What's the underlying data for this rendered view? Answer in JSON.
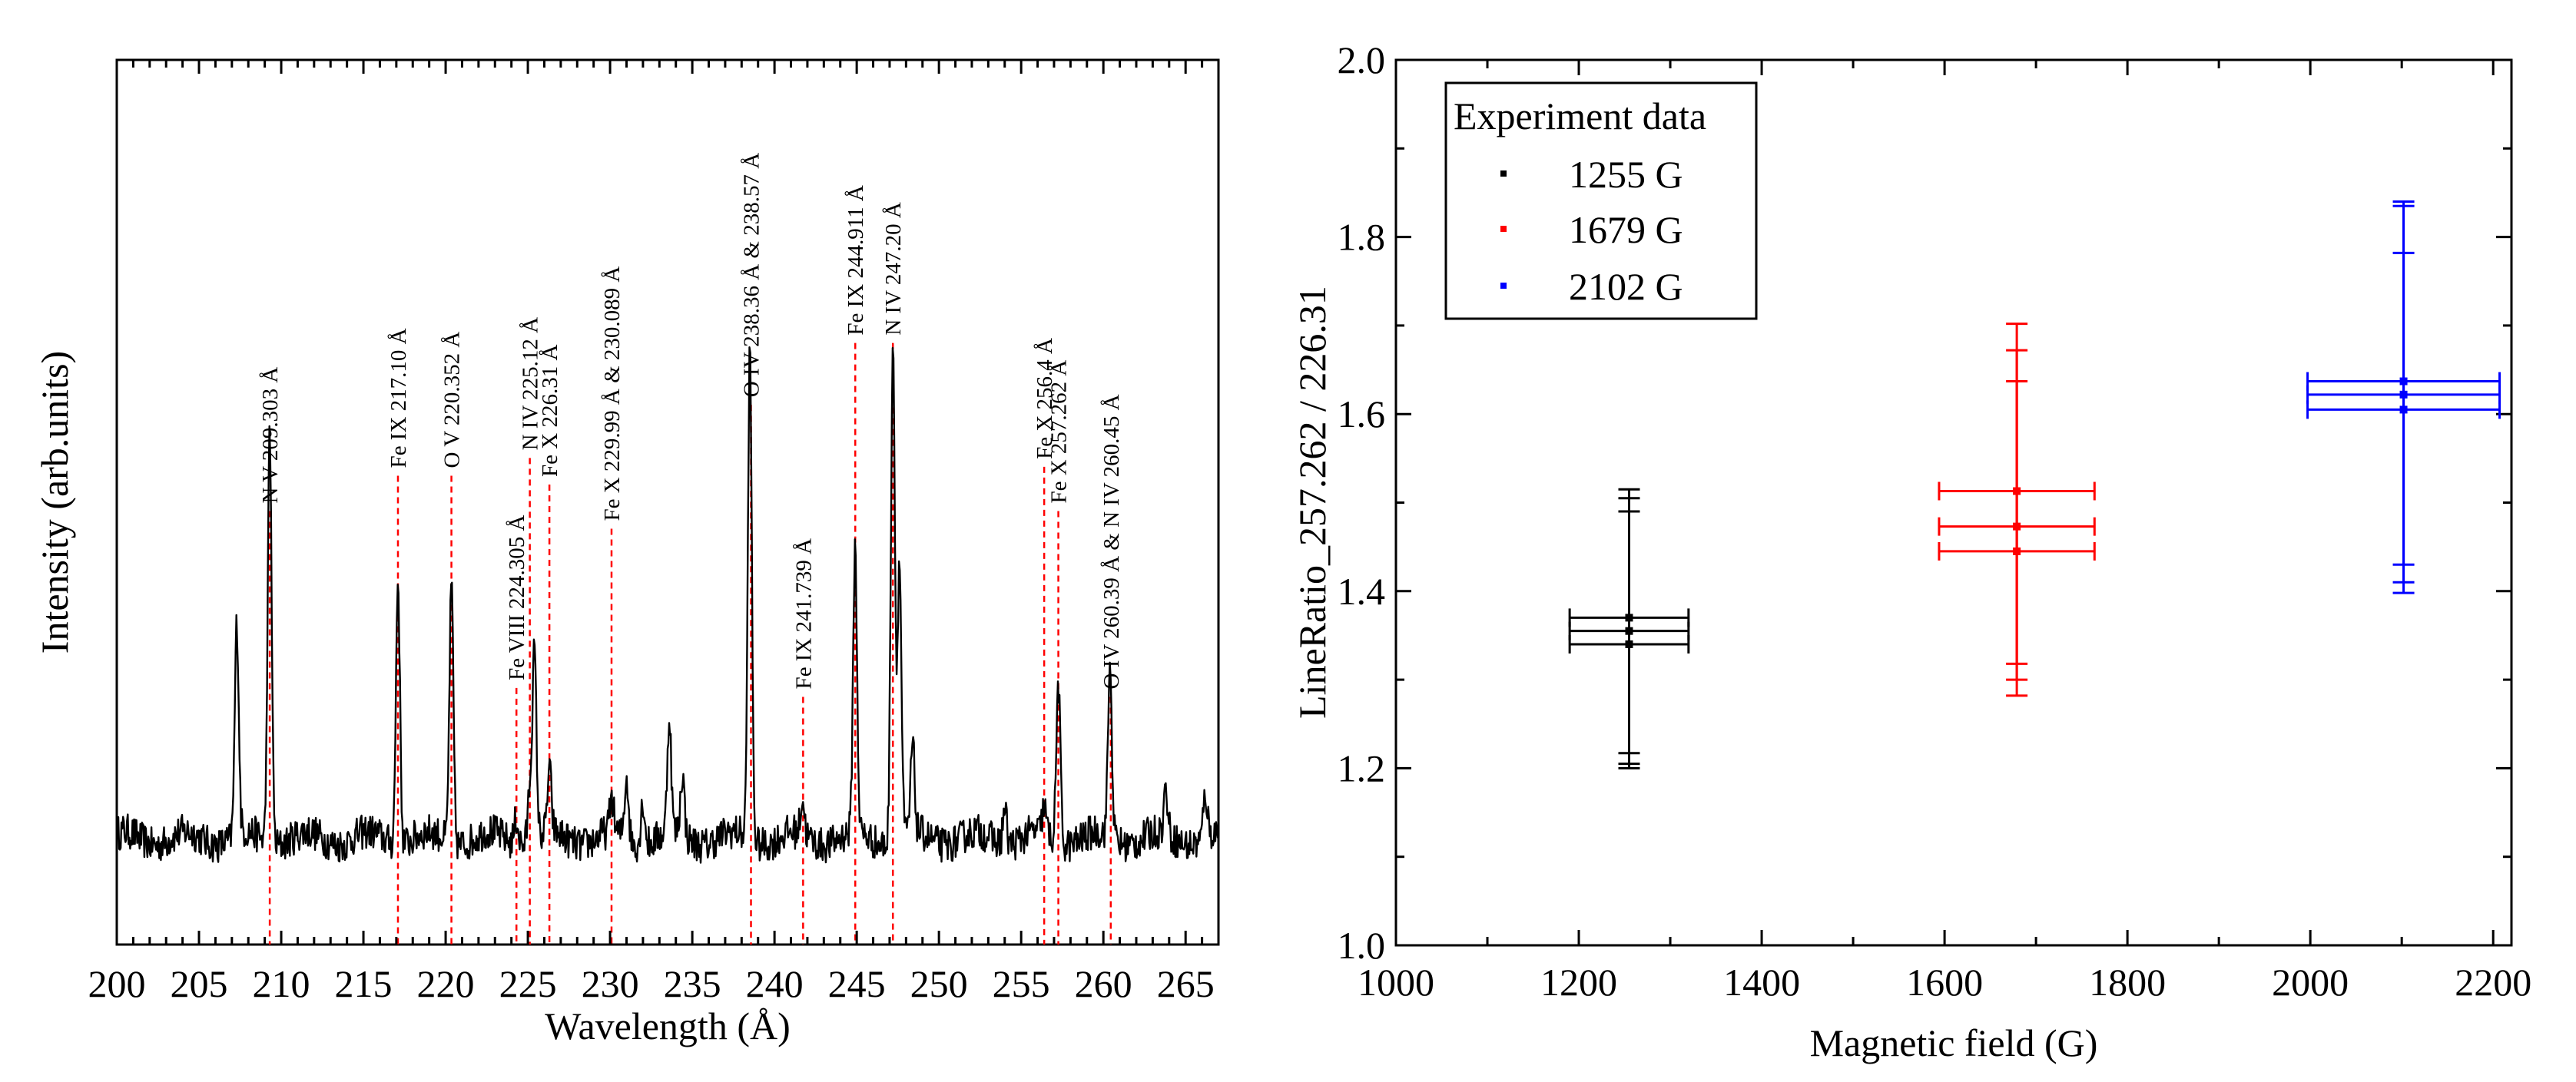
{
  "chart_data": [
    {
      "type": "line",
      "title": "",
      "xlabel": "Wavelength (Å)",
      "ylabel": "Intensity (arb.units)",
      "xlim": [
        200,
        267
      ],
      "ylim": [
        0,
        1
      ],
      "xticks": [
        200,
        205,
        210,
        215,
        220,
        225,
        230,
        235,
        240,
        245,
        250,
        255,
        260,
        265
      ],
      "line_color": "#000000",
      "marker_color": "#ff0000",
      "baseline": 0.12,
      "noise_amplitude": 0.02,
      "peaks": [
        {
          "x": 207.3,
          "h": 0.24
        },
        {
          "x": 209.3,
          "h": 0.46
        },
        {
          "x": 217.1,
          "h": 0.3
        },
        {
          "x": 220.35,
          "h": 0.29
        },
        {
          "x": 224.3,
          "h": 0.03
        },
        {
          "x": 225.12,
          "h": 0.06
        },
        {
          "x": 225.4,
          "h": 0.21
        },
        {
          "x": 226.31,
          "h": 0.07
        },
        {
          "x": 230.1,
          "h": 0.04
        },
        {
          "x": 231.0,
          "h": 0.07
        },
        {
          "x": 232.0,
          "h": 0.05
        },
        {
          "x": 233.6,
          "h": 0.13
        },
        {
          "x": 234.4,
          "h": 0.07
        },
        {
          "x": 238.5,
          "h": 0.55
        },
        {
          "x": 241.7,
          "h": 0.04
        },
        {
          "x": 244.9,
          "h": 0.32
        },
        {
          "x": 247.2,
          "h": 0.57
        },
        {
          "x": 247.6,
          "h": 0.31
        },
        {
          "x": 248.4,
          "h": 0.1
        },
        {
          "x": 254.0,
          "h": 0.04
        },
        {
          "x": 256.4,
          "h": 0.03
        },
        {
          "x": 257.26,
          "h": 0.18
        },
        {
          "x": 260.4,
          "h": 0.19
        },
        {
          "x": 263.8,
          "h": 0.05
        },
        {
          "x": 266.2,
          "h": 0.05
        }
      ],
      "line_markers": [
        {
          "x": 209.303,
          "label": "N V 209.303 Å",
          "y_top": 0.49
        },
        {
          "x": 217.1,
          "label": "Fe IX 217.10 Å",
          "y_top": 0.53
        },
        {
          "x": 220.352,
          "label": "O V 220.352 Å",
          "y_top": 0.53
        },
        {
          "x": 224.305,
          "label": "Fe VIII 224.305 Å",
          "y_top": 0.29
        },
        {
          "x": 225.12,
          "label": "N IV 225.12 Å",
          "y_top": 0.55
        },
        {
          "x": 226.31,
          "label": "Fe X 226.31 Å",
          "y_top": 0.52
        },
        {
          "x": 230.089,
          "label": "Fe X 229.99 Å & 230.089 Å",
          "y_top": 0.47
        },
        {
          "x": 238.57,
          "label": "O IV 238.36 Å & 238.57 Å",
          "y_top": 0.61
        },
        {
          "x": 241.739,
          "label": "Fe IX 241.739 Å",
          "y_top": 0.28
        },
        {
          "x": 244.911,
          "label": "Fe IX 244.911 Å",
          "y_top": 0.68
        },
        {
          "x": 247.2,
          "label": "N IV 247.20 Å",
          "y_top": 0.68
        },
        {
          "x": 256.4,
          "label": "Fe X 256.4 Å",
          "y_top": 0.54
        },
        {
          "x": 257.262,
          "label": "Fe X 257.262 Å",
          "y_top": 0.49
        },
        {
          "x": 260.45,
          "label": "O IV 260.39 Å & N IV 260.45 Å",
          "y_top": 0.28
        }
      ]
    },
    {
      "type": "scatter",
      "title": "",
      "xlabel": "Magnetic field (G)",
      "ylabel": "LineRatio_257.262 / 226.31",
      "xlim": [
        1000,
        2220
      ],
      "ylim": [
        1.0,
        2.0
      ],
      "xticks": [
        1000,
        1200,
        1400,
        1600,
        1800,
        2000,
        2200
      ],
      "yticks": [
        1.0,
        1.2,
        1.4,
        1.6,
        1.8,
        2.0
      ],
      "legend": {
        "title": "Experiment data",
        "position": "top-left"
      },
      "series": [
        {
          "name": "1255 G",
          "color": "#000000",
          "points": [
            {
              "x": 1255,
              "y": 1.37,
              "xerr": 65,
              "yerr_low": 1.217,
              "yerr_high": 1.515
            },
            {
              "x": 1255,
              "y": 1.355,
              "xerr": 65,
              "yerr_low": 1.205,
              "yerr_high": 1.505
            },
            {
              "x": 1255,
              "y": 1.34,
              "xerr": 65,
              "yerr_low": 1.2,
              "yerr_high": 1.49
            }
          ]
        },
        {
          "name": "1679 G",
          "color": "#ff0000",
          "points": [
            {
              "x": 1679,
              "y": 1.513,
              "xerr": 85,
              "yerr_low": 1.318,
              "yerr_high": 1.702
            },
            {
              "x": 1679,
              "y": 1.473,
              "xerr": 85,
              "yerr_low": 1.3,
              "yerr_high": 1.672
            },
            {
              "x": 1679,
              "y": 1.445,
              "xerr": 85,
              "yerr_low": 1.282,
              "yerr_high": 1.637
            }
          ]
        },
        {
          "name": "2102 G",
          "color": "#0000ff",
          "points": [
            {
              "x": 2102,
              "y": 1.637,
              "xerr": 105,
              "yerr_low": 1.43,
              "yerr_high": 1.84
            },
            {
              "x": 2102,
              "y": 1.622,
              "xerr": 105,
              "yerr_low": 1.41,
              "yerr_high": 1.835
            },
            {
              "x": 2102,
              "y": 1.605,
              "xerr": 105,
              "yerr_low": 1.398,
              "yerr_high": 1.782
            }
          ]
        }
      ]
    }
  ]
}
